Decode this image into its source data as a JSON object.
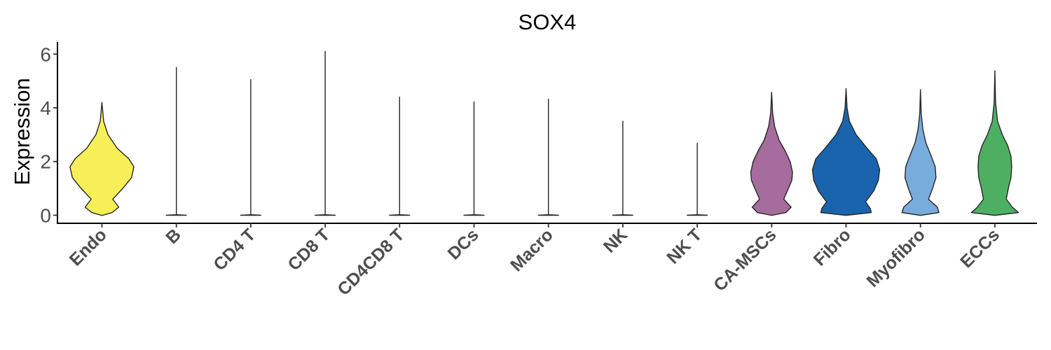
{
  "chart_data": {
    "type": "violin",
    "title": "SOX4",
    "xlabel": "",
    "ylabel": "Expression",
    "ylim": [
      -0.3,
      6.45
    ],
    "yticks": [
      0,
      2,
      4,
      6
    ],
    "grid": false,
    "legend": "none",
    "categories": [
      "Endo",
      "B",
      "CD4 T",
      "CD8 T",
      "CD4CD8 T",
      "DCs",
      "Macro",
      "NK",
      "NK T",
      "CA-MSCs",
      "Fibro",
      "Myofibro",
      "ECCs"
    ],
    "max_values": [
      4.2,
      5.5,
      5.05,
      6.1,
      4.4,
      4.22,
      4.32,
      3.5,
      2.68,
      4.58,
      4.72,
      4.68,
      5.38
    ],
    "colors": [
      "#f7ef57",
      "#ffffff",
      "#ffffff",
      "#ffffff",
      "#ffffff",
      "#ffffff",
      "#ffffff",
      "#ffffff",
      "#ffffff",
      "#a66c9d",
      "#1a64ad",
      "#78acdd",
      "#4eaf63"
    ],
    "density_profiles": [
      {
        "y": [
          0,
          0.1,
          0.3,
          0.6,
          1.0,
          1.4,
          1.8,
          2.1,
          2.5,
          3.0,
          3.5,
          4.2
        ],
        "w": [
          0.02,
          0.3,
          0.5,
          0.32,
          0.62,
          0.88,
          0.95,
          0.8,
          0.45,
          0.18,
          0.05,
          0
        ]
      },
      {
        "y": [
          0,
          0.02,
          5.5
        ],
        "w": [
          0.3,
          0,
          0
        ]
      },
      {
        "y": [
          0,
          0.02,
          5.05
        ],
        "w": [
          0.3,
          0,
          0
        ]
      },
      {
        "y": [
          0,
          0.02,
          6.1
        ],
        "w": [
          0.3,
          0,
          0
        ]
      },
      {
        "y": [
          0,
          0.02,
          4.4
        ],
        "w": [
          0.3,
          0,
          0
        ]
      },
      {
        "y": [
          0,
          0.02,
          4.22
        ],
        "w": [
          0.3,
          0,
          0
        ]
      },
      {
        "y": [
          0,
          0.02,
          4.32
        ],
        "w": [
          0.3,
          0,
          0
        ]
      },
      {
        "y": [
          0,
          0.02,
          3.5
        ],
        "w": [
          0.3,
          0,
          0
        ]
      },
      {
        "y": [
          0,
          0.02,
          2.68
        ],
        "w": [
          0.3,
          0,
          0
        ]
      },
      {
        "y": [
          0,
          0.1,
          0.3,
          0.6,
          1.0,
          1.3,
          1.6,
          2.0,
          2.4,
          2.8,
          3.3,
          3.8,
          4.58
        ],
        "w": [
          0.02,
          0.42,
          0.58,
          0.36,
          0.5,
          0.6,
          0.62,
          0.55,
          0.4,
          0.22,
          0.09,
          0.03,
          0
        ]
      },
      {
        "y": [
          0,
          0.1,
          0.25,
          0.5,
          0.9,
          1.3,
          1.7,
          2.1,
          2.5,
          3.0,
          3.5,
          4.0,
          4.72
        ],
        "w": [
          0.02,
          0.75,
          0.72,
          0.58,
          0.82,
          0.96,
          1.0,
          0.9,
          0.62,
          0.3,
          0.1,
          0.03,
          0
        ]
      },
      {
        "y": [
          0,
          0.1,
          0.3,
          0.6,
          1.0,
          1.4,
          1.8,
          2.2,
          2.7,
          3.2,
          3.8,
          4.68
        ],
        "w": [
          0.02,
          0.55,
          0.5,
          0.24,
          0.36,
          0.46,
          0.44,
          0.32,
          0.16,
          0.07,
          0.02,
          0
        ]
      },
      {
        "y": [
          0,
          0.1,
          0.3,
          0.6,
          1.0,
          1.4,
          1.8,
          2.2,
          2.6,
          3.0,
          3.5,
          4.2,
          5.38
        ],
        "w": [
          0.02,
          0.7,
          0.52,
          0.34,
          0.4,
          0.48,
          0.5,
          0.48,
          0.38,
          0.22,
          0.08,
          0.02,
          0
        ]
      }
    ]
  }
}
